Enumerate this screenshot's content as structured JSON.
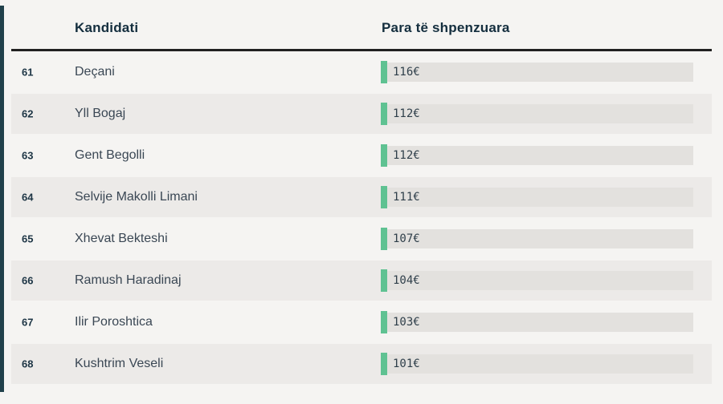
{
  "header": {
    "candidate_col": "Kandidati",
    "spending_col": "Para të shpenzuara"
  },
  "rows": [
    {
      "rank": "61",
      "candidate": "Deçani",
      "amount_label": "116€",
      "amount": 116
    },
    {
      "rank": "62",
      "candidate": "Yll Bogaj",
      "amount_label": "112€",
      "amount": 112
    },
    {
      "rank": "63",
      "candidate": "Gent Begolli",
      "amount_label": "112€",
      "amount": 112
    },
    {
      "rank": "64",
      "candidate": "Selvije Makolli Limani",
      "amount_label": "111€",
      "amount": 111
    },
    {
      "rank": "65",
      "candidate": "Xhevat Bekteshi",
      "amount_label": "107€",
      "amount": 107
    },
    {
      "rank": "66",
      "candidate": "Ramush Haradinaj",
      "amount_label": "104€",
      "amount": 104
    },
    {
      "rank": "67",
      "candidate": "Ilir Poroshtica",
      "amount_label": "103€",
      "amount": 103
    },
    {
      "rank": "68",
      "candidate": "Kushtrim Veseli",
      "amount_label": "101€",
      "amount": 101
    }
  ],
  "chart_data": {
    "type": "bar",
    "orientation": "horizontal",
    "title": "Para të shpenzuara",
    "xlabel": "",
    "ylabel": "Kandidati",
    "unit": "€",
    "ranks": [
      61,
      62,
      63,
      64,
      65,
      66,
      67,
      68
    ],
    "categories": [
      "Deçani",
      "Yll Bogaj",
      "Gent Begolli",
      "Selvije Makolli Limani",
      "Xhevat Bekteshi",
      "Ramush Haradinaj",
      "Ilir Poroshtica",
      "Kushtrim Veseli"
    ],
    "values": [
      116,
      112,
      112,
      111,
      107,
      104,
      103,
      101
    ],
    "value_labels": [
      "116€",
      "112€",
      "112€",
      "111€",
      "107€",
      "104€",
      "103€",
      "101€"
    ],
    "legend": "none",
    "grid": "off"
  },
  "colors": {
    "page_bg": "#f5f4f2",
    "row_alt_bg": "#eceae8",
    "bar_green": "#5fc292",
    "bar_track": "#e3e1de",
    "header_text": "#142e3e",
    "body_text": "#3a4754",
    "header_rule": "#212121",
    "accent_strip": "#20404b"
  }
}
